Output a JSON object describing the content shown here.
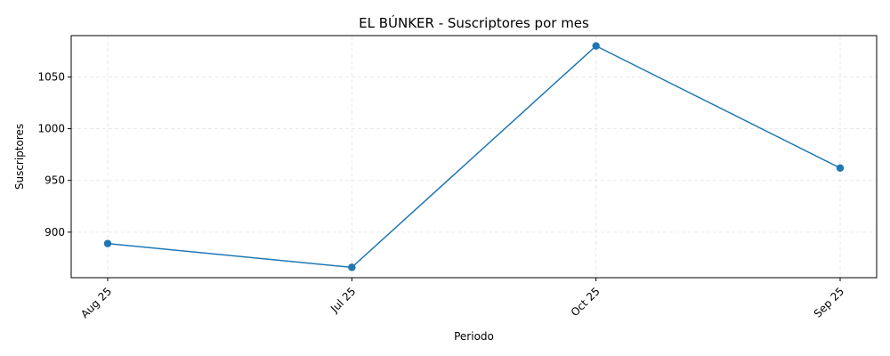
{
  "chart_data": {
    "type": "line",
    "title": "EL BÚNKER - Suscriptores por mes",
    "xlabel": "Periodo",
    "ylabel": "Suscriptores",
    "categories": [
      "Aug 25",
      "Jul 25",
      "Oct 25",
      "Sep 25"
    ],
    "series": [
      {
        "values": [
          889,
          866,
          1080,
          962
        ],
        "color": "#1f77b4",
        "marker": "circle"
      }
    ],
    "yticks": [
      900,
      950,
      1000,
      1050
    ],
    "ylim": [
      856,
      1090
    ],
    "grid": true,
    "legend": "none"
  }
}
